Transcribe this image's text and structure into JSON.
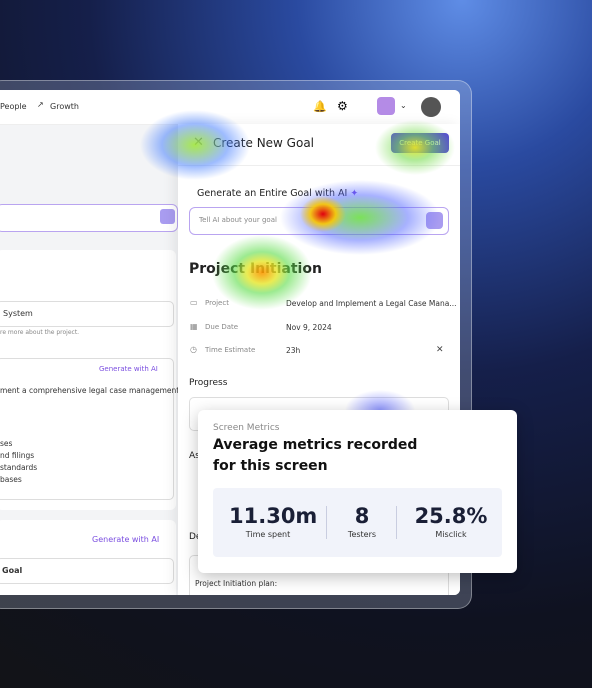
{
  "nav": {
    "items": [
      "People",
      "Growth"
    ]
  },
  "modal": {
    "title": "Create New Goal",
    "button": "Create Goal",
    "ai_heading": "Generate an Entire Goal with AI",
    "ai_placeholder": "Tell AI about your goal",
    "goal_title": "Project Initiation",
    "fields": [
      {
        "label": "Project",
        "value": "Develop and Implement a Legal Case Mana..."
      },
      {
        "label": "Due Date",
        "value": "Nov 9, 2024"
      },
      {
        "label": "Time Estimate",
        "value": "23h"
      }
    ],
    "progress": "Progress",
    "assignee_cut": "As",
    "description_cut": "De",
    "description": "Project Initiation plan:"
  },
  "left": {
    "input_value": "System",
    "helper": "re more about the project.",
    "generate_1": "Generate with AI",
    "desc_line": "ment a comprehensive legal case management",
    "list": [
      "ses",
      "nd filings",
      "standards",
      "bases"
    ],
    "generate_2": "Generate with AI",
    "goal_input": "Goal"
  },
  "card": {
    "eyebrow": "Screen Metrics",
    "title_lines": [
      "Average metrics recorded",
      "for this screen"
    ],
    "metrics": [
      {
        "value": "11.30m",
        "label": "Time spent"
      },
      {
        "value": "8",
        "label": "Testers"
      },
      {
        "value": "25.8%",
        "label": "Misclick"
      }
    ]
  }
}
